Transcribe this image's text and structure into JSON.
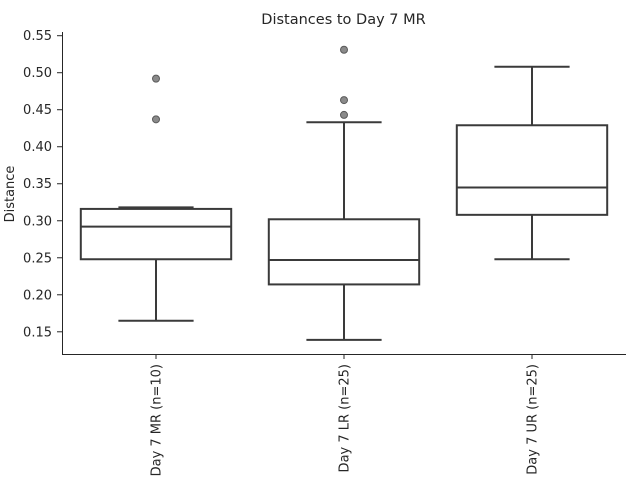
{
  "chart_data": {
    "type": "box",
    "title": "Distances to Day 7 MR",
    "xlabel": "",
    "ylabel": "Distance",
    "ylim": [
      0.12,
      0.555
    ],
    "yticks": [
      0.15,
      0.2,
      0.25,
      0.3,
      0.35,
      0.4,
      0.45,
      0.5,
      0.55
    ],
    "ytick_labels": [
      "0.15",
      "0.20",
      "0.25",
      "0.30",
      "0.35",
      "0.40",
      "0.45",
      "0.50",
      "0.55"
    ],
    "categories": [
      "Day 7 MR (n=10)",
      "Day 7 LR (n=25)",
      "Day 7 UR (n=25)"
    ],
    "boxes": [
      {
        "whislo": 0.165,
        "q1": 0.248,
        "med": 0.292,
        "q3": 0.316,
        "whishi": 0.318,
        "fliers": [
          0.437,
          0.492
        ]
      },
      {
        "whislo": 0.139,
        "q1": 0.214,
        "med": 0.247,
        "q3": 0.302,
        "whishi": 0.433,
        "fliers": [
          0.443,
          0.463,
          0.531
        ]
      },
      {
        "whislo": 0.248,
        "q1": 0.308,
        "med": 0.345,
        "q3": 0.429,
        "whishi": 0.508,
        "fliers": []
      }
    ],
    "grid": false,
    "legend": "none"
  }
}
